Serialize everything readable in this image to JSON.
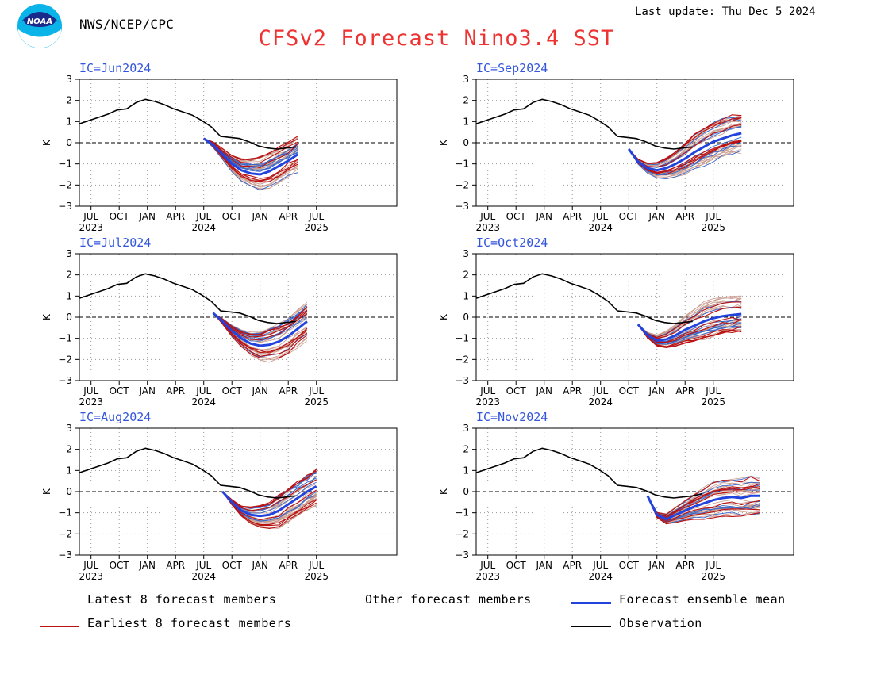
{
  "header": {
    "logo_text": "NOAA",
    "agency": "NWS/NCEP/CPC",
    "last_update": "Last update: Thu Dec 5 2024",
    "title": "CFSv2 Forecast Nino3.4 SST"
  },
  "colors": {
    "latest": "#3366cc",
    "other": "#c89a8c",
    "mean": "#2244dd",
    "earliest": "#bb1111",
    "observation": "#000000",
    "title": "#ee3333",
    "panel_label": "#3355dd"
  },
  "legend": {
    "latest": "Latest 8 forecast members",
    "other": "Other forecast members",
    "mean": "Forecast ensemble mean",
    "earliest": "Earliest 8 forecast members",
    "observation": "Observation"
  },
  "chart_data": [
    {
      "type": "line",
      "ic": "IC=Jun2024",
      "ylabel": "K",
      "ylim": [
        -3,
        3
      ],
      "x_ticks": [
        "JUL",
        "OCT",
        "JAN",
        "APR",
        "JUL",
        "OCT",
        "JAN",
        "APR",
        "JUL"
      ],
      "year_labels": [
        "2023",
        "2024",
        "2025"
      ],
      "observation": [
        0.9,
        1.05,
        1.2,
        1.35,
        1.55,
        1.6,
        1.9,
        2.05,
        1.95,
        1.8,
        1.6,
        1.45,
        1.3,
        1.05,
        0.75,
        0.3,
        0.25,
        0.2,
        0.05,
        -0.15,
        -0.25,
        -0.3,
        -0.25,
        -0.2
      ],
      "mean": [
        0.2,
        -0.1,
        -0.55,
        -1.0,
        -1.3,
        -1.45,
        -1.5,
        -1.35,
        -1.1,
        -0.85,
        -0.55
      ],
      "spread": 0.55
    },
    {
      "type": "line",
      "ic": "IC=Sep2024",
      "ylabel": "K",
      "ylim": [
        -3,
        3
      ],
      "x_ticks": [
        "JUL",
        "OCT",
        "JAN",
        "APR",
        "JUL",
        "OCT",
        "JAN",
        "APR",
        "JUL"
      ],
      "year_labels": [
        "2023",
        "2024",
        "2025"
      ],
      "observation": [
        0.9,
        1.05,
        1.2,
        1.35,
        1.55,
        1.6,
        1.9,
        2.05,
        1.95,
        1.8,
        1.6,
        1.45,
        1.3,
        1.05,
        0.75,
        0.3,
        0.25,
        0.2,
        0.05,
        -0.15,
        -0.25,
        -0.3,
        -0.25,
        -0.2
      ],
      "mean": [
        -0.3,
        -0.9,
        -1.2,
        -1.3,
        -1.2,
        -1.0,
        -0.75,
        -0.45,
        -0.2,
        0.05,
        0.2,
        0.35,
        0.45
      ],
      "spread": 0.6
    },
    {
      "type": "line",
      "ic": "IC=Jul2024",
      "ylabel": "K",
      "ylim": [
        -3,
        3
      ],
      "x_ticks": [
        "JUL",
        "OCT",
        "JAN",
        "APR",
        "JUL",
        "OCT",
        "JAN",
        "APR",
        "JUL"
      ],
      "year_labels": [
        "2023",
        "2024",
        "2025"
      ],
      "observation": [
        0.9,
        1.05,
        1.2,
        1.35,
        1.55,
        1.6,
        1.9,
        2.05,
        1.95,
        1.8,
        1.6,
        1.45,
        1.3,
        1.05,
        0.75,
        0.3,
        0.25,
        0.2,
        0.05,
        -0.15,
        -0.25,
        -0.3,
        -0.25,
        -0.2
      ],
      "mean": [
        0.2,
        -0.2,
        -0.65,
        -1.0,
        -1.25,
        -1.35,
        -1.3,
        -1.15,
        -0.9,
        -0.55,
        -0.2
      ],
      "spread": 0.55
    },
    {
      "type": "line",
      "ic": "IC=Oct2024",
      "ylabel": "K",
      "ylim": [
        -3,
        3
      ],
      "x_ticks": [
        "JUL",
        "OCT",
        "JAN",
        "APR",
        "JUL",
        "OCT",
        "JAN",
        "APR",
        "JUL"
      ],
      "year_labels": [
        "2023",
        "2024",
        "2025"
      ],
      "observation": [
        0.9,
        1.05,
        1.2,
        1.35,
        1.55,
        1.6,
        1.9,
        2.05,
        1.95,
        1.8,
        1.6,
        1.45,
        1.3,
        1.05,
        0.75,
        0.3,
        0.25,
        0.2,
        0.05,
        -0.15,
        -0.25,
        -0.3,
        -0.25,
        -0.2
      ],
      "mean": [
        -0.35,
        -0.85,
        -1.1,
        -1.05,
        -0.85,
        -0.6,
        -0.4,
        -0.2,
        -0.05,
        0.05,
        0.1,
        0.15
      ],
      "spread": 0.6
    },
    {
      "type": "line",
      "ic": "IC=Aug2024",
      "ylabel": "K",
      "ylim": [
        -3,
        3
      ],
      "x_ticks": [
        "JUL",
        "OCT",
        "JAN",
        "APR",
        "JUL",
        "OCT",
        "JAN",
        "APR",
        "JUL"
      ],
      "year_labels": [
        "2023",
        "2024",
        "2025"
      ],
      "observation": [
        0.9,
        1.05,
        1.2,
        1.35,
        1.55,
        1.6,
        1.9,
        2.05,
        1.95,
        1.8,
        1.6,
        1.45,
        1.3,
        1.05,
        0.75,
        0.3,
        0.25,
        0.2,
        0.05,
        -0.15,
        -0.25,
        -0.3,
        -0.25,
        -0.2
      ],
      "mean": [
        0.0,
        -0.5,
        -0.9,
        -1.1,
        -1.15,
        -1.1,
        -0.9,
        -0.6,
        -0.3,
        0.0,
        0.25
      ],
      "spread": 0.55
    },
    {
      "type": "line",
      "ic": "IC=Nov2024",
      "ylabel": "K",
      "ylim": [
        -3,
        3
      ],
      "x_ticks": [
        "JUL",
        "OCT",
        "JAN",
        "APR",
        "JUL",
        "OCT",
        "JAN",
        "APR",
        "JUL"
      ],
      "year_labels": [
        "2023",
        "2024",
        "2025"
      ],
      "observation": [
        0.9,
        1.05,
        1.2,
        1.35,
        1.55,
        1.6,
        1.9,
        2.05,
        1.95,
        1.8,
        1.6,
        1.45,
        1.3,
        1.05,
        0.75,
        0.3,
        0.25,
        0.2,
        0.05,
        -0.15,
        -0.25,
        -0.3,
        -0.25,
        -0.2,
        -0.1
      ],
      "mean": [
        -0.2,
        -1.1,
        -1.3,
        -1.1,
        -0.9,
        -0.7,
        -0.55,
        -0.4,
        -0.3,
        -0.25,
        -0.3,
        -0.2,
        -0.2
      ],
      "spread": 0.6
    }
  ]
}
